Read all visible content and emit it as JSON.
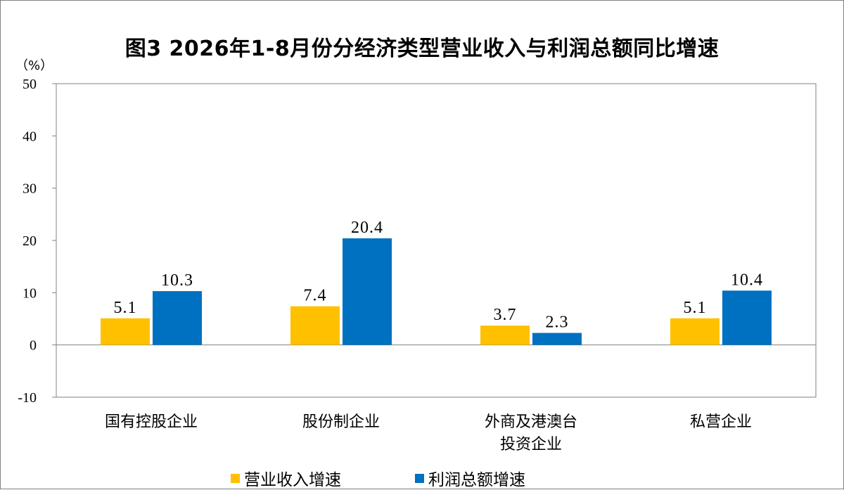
{
  "chart_data": {
    "type": "bar",
    "title": "图3  2026年1-8月份分经济类型营业收入与利润总额同比增速",
    "unit_label": "（%）",
    "categories": [
      [
        "国有控股企业"
      ],
      [
        "股份制企业"
      ],
      [
        "外商及港澳台",
        "投资企业"
      ],
      [
        "私营企业"
      ]
    ],
    "series": [
      {
        "name": "营业收入增速",
        "color": "#FFC000",
        "values": [
          5.1,
          7.4,
          3.7,
          5.1
        ]
      },
      {
        "name": "利润总额增速",
        "color": "#0070C0",
        "values": [
          10.3,
          20.4,
          2.3,
          10.4
        ]
      }
    ],
    "ylim": [
      -10,
      50
    ],
    "yticks": [
      -10,
      0,
      10,
      20,
      30,
      40,
      50
    ],
    "grid": false,
    "legend_position": "bottom"
  }
}
